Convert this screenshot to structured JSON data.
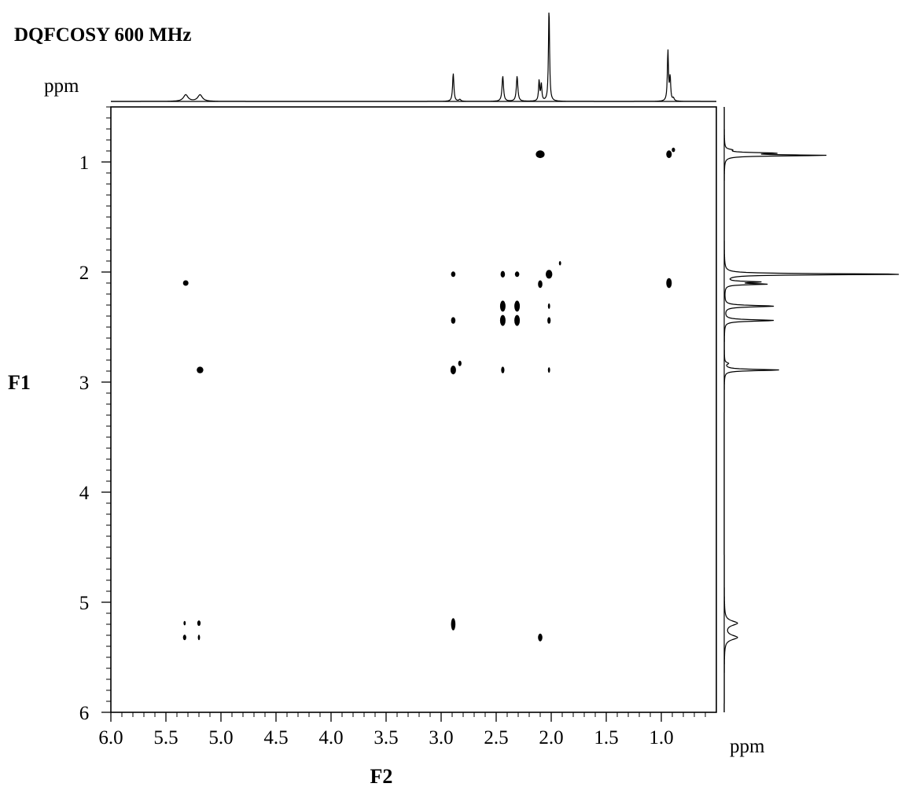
{
  "chart_data": {
    "type": "heatmap",
    "title": "DQFCOSY 600 MHz",
    "xlabel": "F2",
    "ylabel": "F1",
    "top_unit": "ppm",
    "right_unit": "ppm",
    "xlim": [
      6.0,
      0.5
    ],
    "ylim": [
      0.5,
      6.0
    ],
    "x_ticks": [
      {
        "v": 6.0,
        "label": "6.0"
      },
      {
        "v": 5.5,
        "label": "5.5"
      },
      {
        "v": 5.0,
        "label": "5.0"
      },
      {
        "v": 4.5,
        "label": "4.5"
      },
      {
        "v": 4.0,
        "label": "4.0"
      },
      {
        "v": 3.5,
        "label": "3.5"
      },
      {
        "v": 3.0,
        "label": "3.0"
      },
      {
        "v": 2.5,
        "label": "2.5"
      },
      {
        "v": 2.0,
        "label": "2.0"
      },
      {
        "v": 1.5,
        "label": "1.5"
      },
      {
        "v": 1.0,
        "label": "1.0"
      }
    ],
    "y_ticks": [
      {
        "v": 1,
        "label": "1"
      },
      {
        "v": 2,
        "label": "2"
      },
      {
        "v": 3,
        "label": "3"
      },
      {
        "v": 4,
        "label": "4"
      },
      {
        "v": 5,
        "label": "5"
      },
      {
        "v": 6,
        "label": "6"
      }
    ],
    "cross_peaks": [
      {
        "f2": 2.1,
        "f1": 0.93,
        "w": 0.08,
        "h": 0.07
      },
      {
        "f2": 0.93,
        "f1": 0.93,
        "w": 0.05,
        "h": 0.07
      },
      {
        "f2": 0.89,
        "f1": 0.89,
        "w": 0.03,
        "h": 0.04
      },
      {
        "f2": 5.32,
        "f1": 2.1,
        "w": 0.05,
        "h": 0.05
      },
      {
        "f2": 2.89,
        "f1": 2.02,
        "w": 0.04,
        "h": 0.05
      },
      {
        "f2": 2.44,
        "f1": 2.02,
        "w": 0.04,
        "h": 0.06
      },
      {
        "f2": 2.31,
        "f1": 2.02,
        "w": 0.04,
        "h": 0.05
      },
      {
        "f2": 2.1,
        "f1": 2.11,
        "w": 0.04,
        "h": 0.07
      },
      {
        "f2": 2.02,
        "f1": 2.02,
        "w": 0.06,
        "h": 0.08
      },
      {
        "f2": 1.92,
        "f1": 1.92,
        "w": 0.02,
        "h": 0.04
      },
      {
        "f2": 0.93,
        "f1": 2.1,
        "w": 0.05,
        "h": 0.09
      },
      {
        "f2": 2.44,
        "f1": 2.31,
        "w": 0.05,
        "h": 0.1
      },
      {
        "f2": 2.31,
        "f1": 2.31,
        "w": 0.05,
        "h": 0.1
      },
      {
        "f2": 2.02,
        "f1": 2.31,
        "w": 0.02,
        "h": 0.05
      },
      {
        "f2": 2.89,
        "f1": 2.44,
        "w": 0.04,
        "h": 0.06
      },
      {
        "f2": 2.44,
        "f1": 2.44,
        "w": 0.05,
        "h": 0.1
      },
      {
        "f2": 2.31,
        "f1": 2.44,
        "w": 0.05,
        "h": 0.1
      },
      {
        "f2": 2.02,
        "f1": 2.44,
        "w": 0.03,
        "h": 0.06
      },
      {
        "f2": 5.19,
        "f1": 2.89,
        "w": 0.06,
        "h": 0.06
      },
      {
        "f2": 2.89,
        "f1": 2.89,
        "w": 0.05,
        "h": 0.08
      },
      {
        "f2": 2.83,
        "f1": 2.83,
        "w": 0.03,
        "h": 0.05
      },
      {
        "f2": 2.44,
        "f1": 2.89,
        "w": 0.03,
        "h": 0.06
      },
      {
        "f2": 2.02,
        "f1": 2.89,
        "w": 0.02,
        "h": 0.05
      },
      {
        "f2": 5.33,
        "f1": 5.19,
        "w": 0.02,
        "h": 0.04
      },
      {
        "f2": 5.2,
        "f1": 5.19,
        "w": 0.03,
        "h": 0.05
      },
      {
        "f2": 5.33,
        "f1": 5.32,
        "w": 0.03,
        "h": 0.05
      },
      {
        "f2": 5.2,
        "f1": 5.32,
        "w": 0.02,
        "h": 0.05
      },
      {
        "f2": 2.89,
        "f1": 5.2,
        "w": 0.04,
        "h": 0.11
      },
      {
        "f2": 2.1,
        "f1": 5.32,
        "w": 0.04,
        "h": 0.07
      }
    ],
    "projection_peaks": [
      {
        "ppm": 5.32,
        "intensity": 0.07,
        "width": 0.025
      },
      {
        "ppm": 5.19,
        "intensity": 0.07,
        "width": 0.025
      },
      {
        "ppm": 2.89,
        "intensity": 0.3,
        "width": 0.007
      },
      {
        "ppm": 2.83,
        "intensity": 0.02,
        "width": 0.01
      },
      {
        "ppm": 2.44,
        "intensity": 0.27,
        "width": 0.008
      },
      {
        "ppm": 2.31,
        "intensity": 0.27,
        "width": 0.008
      },
      {
        "ppm": 2.11,
        "intensity": 0.22,
        "width": 0.006
      },
      {
        "ppm": 2.09,
        "intensity": 0.18,
        "width": 0.006
      },
      {
        "ppm": 2.02,
        "intensity": 1.0,
        "width": 0.006
      },
      {
        "ppm": 0.94,
        "intensity": 0.54,
        "width": 0.006
      },
      {
        "ppm": 0.92,
        "intensity": 0.25,
        "width": 0.006
      },
      {
        "ppm": 0.89,
        "intensity": 0.03,
        "width": 0.008
      }
    ]
  }
}
